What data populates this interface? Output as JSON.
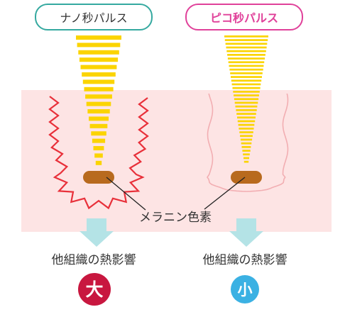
{
  "labels": {
    "nano_pulse": "ナノ秒パルス",
    "pico_pulse": "ピコ秒パルス",
    "melanin": "メラニン色素",
    "thermal_effect_left": "他組織の熱影響",
    "thermal_effect_right": "他組織の熱影響",
    "badge_large": "大",
    "badge_small": "小"
  },
  "colors": {
    "nano_border": "#35a9a0",
    "pico_border": "#e0419a",
    "skin_band": "#fde4e4",
    "beam_yellow": "#fbd400",
    "heat_red": "#e8303a",
    "heat_light": "#f2aeb2",
    "melanin": "#b86a1e",
    "arrow": "#b4e3e6",
    "badge_large_bg": "#c8173f",
    "badge_small_bg": "#3bb1e3",
    "text": "#333333"
  }
}
